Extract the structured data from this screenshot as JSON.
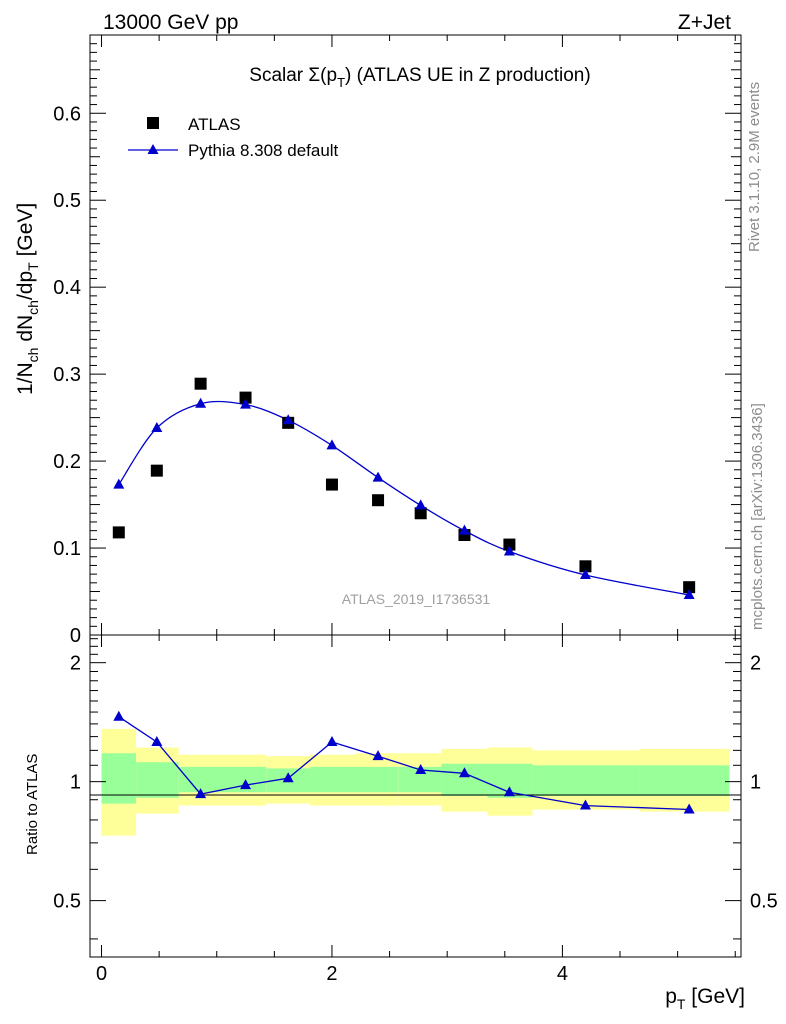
{
  "header": {
    "left": "13000 GeV pp",
    "right": "Z+Jet"
  },
  "side": {
    "top": "Rivet 3.1.10,  2.9M events",
    "bottom": "mcplots.cern.ch [arXiv:1306.3436]"
  },
  "colors": {
    "mc": "#0000cc",
    "data": "#000000",
    "band_inner": "#99ff99",
    "band_outer": "#ffff99"
  },
  "chart_data": [
    {
      "type": "scatter",
      "title": {
        "pre": "Scalar Σ(p",
        "sub": "T",
        "post": ")  (ATLAS UE in Z production)"
      },
      "ylabel": {
        "p1": "1/N",
        "s1": "ch",
        "p2": " dN",
        "s2": "ch",
        "p3": "/dp",
        "s3": "T",
        "p4": " [GeV]"
      },
      "ylim": [
        0,
        0.69
      ],
      "yticks": [
        {
          "v": 0,
          "label": "0"
        },
        {
          "v": 0.1,
          "label": "0.1"
        },
        {
          "v": 0.2,
          "label": "0.2"
        },
        {
          "v": 0.3,
          "label": "0.3"
        },
        {
          "v": 0.4,
          "label": "0.4"
        },
        {
          "v": 0.5,
          "label": "0.5"
        },
        {
          "v": 0.6,
          "label": "0.6"
        }
      ],
      "watermark": "ATLAS_2019_I1736531",
      "legend_position": "top-left",
      "series": [
        {
          "name": "ATLAS",
          "marker": "square",
          "x": [
            0.15,
            0.48,
            0.86,
            1.25,
            1.62,
            2.0,
            2.4,
            2.77,
            3.15,
            3.54,
            4.2,
            5.1
          ],
          "y": [
            0.118,
            0.189,
            0.289,
            0.273,
            0.244,
            0.173,
            0.155,
            0.14,
            0.115,
            0.104,
            0.079,
            0.055
          ]
        },
        {
          "name": "Pythia 8.308 default",
          "marker": "triangle",
          "x": [
            0.15,
            0.48,
            0.86,
            1.25,
            1.62,
            2.0,
            2.4,
            2.77,
            3.15,
            3.54,
            4.2,
            5.1
          ],
          "y": [
            0.173,
            0.238,
            0.266,
            0.265,
            0.247,
            0.218,
            0.181,
            0.149,
            0.12,
            0.096,
            0.069,
            0.046
          ]
        }
      ]
    },
    {
      "type": "line",
      "ylabel": "Ratio to ATLAS",
      "xlabel": {
        "p": "p",
        "s": "T",
        "u": " [GeV]"
      },
      "xlim": [
        -0.1,
        5.55
      ],
      "xticks": [
        {
          "v": 0,
          "label": "0"
        },
        {
          "v": 2,
          "label": "2"
        },
        {
          "v": 4,
          "label": "4"
        }
      ],
      "ylim": [
        0.36,
        2.35
      ],
      "log_y": true,
      "yticks": [
        {
          "v": 0.5,
          "label": "0.5"
        },
        {
          "v": 1,
          "label": "1"
        },
        {
          "v": 2,
          "label": "2"
        }
      ],
      "bands": [
        {
          "xlo": 0.0,
          "xhi": 0.3,
          "in_lo": 0.88,
          "in_hi": 1.18,
          "out_lo": 0.73,
          "out_hi": 1.36
        },
        {
          "xlo": 0.3,
          "xhi": 0.67,
          "in_lo": 0.91,
          "in_hi": 1.12,
          "out_lo": 0.83,
          "out_hi": 1.22
        },
        {
          "xlo": 0.67,
          "xhi": 1.05,
          "in_lo": 0.94,
          "in_hi": 1.09,
          "out_lo": 0.87,
          "out_hi": 1.17
        },
        {
          "xlo": 1.05,
          "xhi": 1.43,
          "in_lo": 0.94,
          "in_hi": 1.09,
          "out_lo": 0.87,
          "out_hi": 1.17
        },
        {
          "xlo": 1.43,
          "xhi": 1.81,
          "in_lo": 0.94,
          "in_hi": 1.08,
          "out_lo": 0.88,
          "out_hi": 1.16
        },
        {
          "xlo": 1.81,
          "xhi": 2.2,
          "in_lo": 0.94,
          "in_hi": 1.09,
          "out_lo": 0.87,
          "out_hi": 1.17
        },
        {
          "xlo": 2.2,
          "xhi": 2.58,
          "in_lo": 0.94,
          "in_hi": 1.09,
          "out_lo": 0.87,
          "out_hi": 1.18
        },
        {
          "xlo": 2.58,
          "xhi": 2.95,
          "in_lo": 0.94,
          "in_hi": 1.09,
          "out_lo": 0.87,
          "out_hi": 1.18
        },
        {
          "xlo": 2.95,
          "xhi": 3.35,
          "in_lo": 0.92,
          "in_hi": 1.11,
          "out_lo": 0.84,
          "out_hi": 1.21
        },
        {
          "xlo": 3.35,
          "xhi": 3.74,
          "in_lo": 0.91,
          "in_hi": 1.11,
          "out_lo": 0.82,
          "out_hi": 1.22
        },
        {
          "xlo": 3.74,
          "xhi": 4.67,
          "in_lo": 0.92,
          "in_hi": 1.1,
          "out_lo": 0.85,
          "out_hi": 1.2
        },
        {
          "xlo": 4.67,
          "xhi": 5.45,
          "in_lo": 0.92,
          "in_hi": 1.1,
          "out_lo": 0.84,
          "out_hi": 1.21
        }
      ],
      "series": [
        {
          "name": "Pythia 8.308 default",
          "x": [
            0.15,
            0.48,
            0.86,
            1.25,
            1.62,
            2.0,
            2.4,
            2.77,
            3.15,
            3.54,
            4.2,
            5.1
          ],
          "y": [
            1.46,
            1.26,
            0.93,
            0.98,
            1.02,
            1.26,
            1.16,
            1.07,
            1.05,
            0.94,
            0.87,
            0.85
          ]
        }
      ]
    }
  ]
}
